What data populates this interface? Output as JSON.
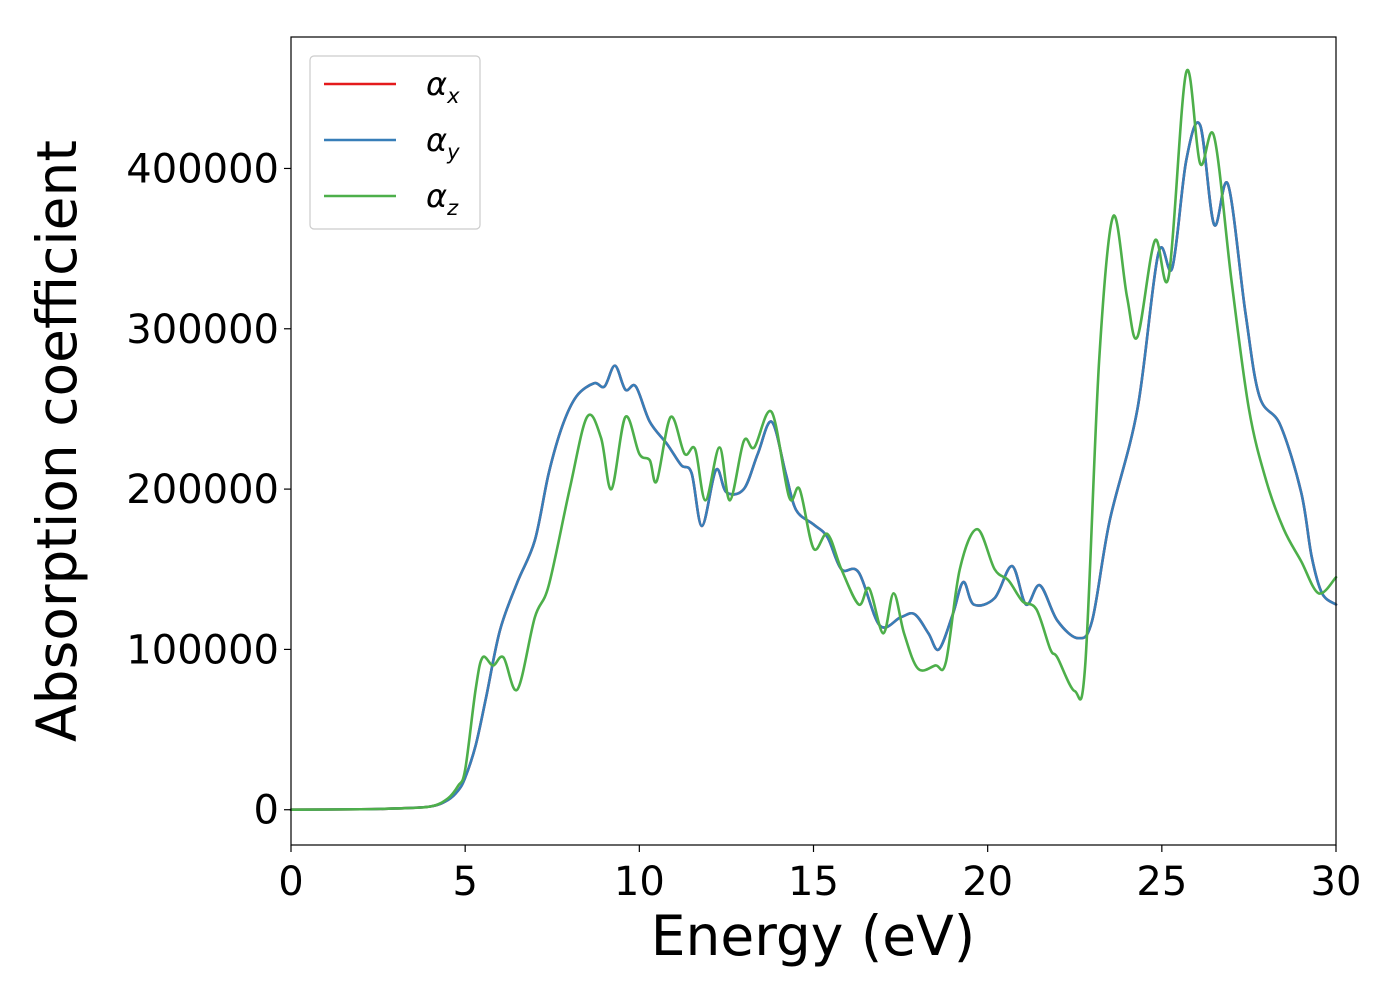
{
  "chart_data": {
    "type": "line",
    "title": "",
    "xlabel": "Energy (eV)",
    "ylabel": "Absorption coefficient",
    "xlim": [
      0,
      30
    ],
    "ylim": [
      -22000,
      482000
    ],
    "xticks": [
      0,
      5,
      10,
      15,
      20,
      25,
      30
    ],
    "yticks": [
      0,
      100000,
      200000,
      300000,
      400000
    ],
    "grid": false,
    "legend_position": "top-left",
    "legend": [
      {
        "base": "α",
        "sub": "x"
      },
      {
        "base": "α",
        "sub": "y"
      },
      {
        "base": "α",
        "sub": "z"
      }
    ],
    "series": [
      {
        "name": "αx",
        "color": "#e41a1c",
        "points": [
          [
            0,
            0
          ],
          [
            2,
            300
          ],
          [
            3,
            800
          ],
          [
            4,
            2000
          ],
          [
            4.5,
            6000
          ],
          [
            4.8,
            12000
          ],
          [
            5,
            20000
          ],
          [
            5.3,
            40000
          ],
          [
            5.6,
            70000
          ],
          [
            6,
            112000
          ],
          [
            6.5,
            142000
          ],
          [
            7,
            168000
          ],
          [
            7.4,
            210000
          ],
          [
            7.8,
            240000
          ],
          [
            8.2,
            258000
          ],
          [
            8.7,
            266000
          ],
          [
            9.0,
            264000
          ],
          [
            9.3,
            277000
          ],
          [
            9.6,
            262000
          ],
          [
            9.9,
            264000
          ],
          [
            10.3,
            242000
          ],
          [
            10.8,
            228000
          ],
          [
            11.2,
            215000
          ],
          [
            11.5,
            210000
          ],
          [
            11.8,
            177000
          ],
          [
            12.2,
            212000
          ],
          [
            12.5,
            198000
          ],
          [
            13.0,
            200000
          ],
          [
            13.4,
            222000
          ],
          [
            13.8,
            242000
          ],
          [
            14.2,
            210000
          ],
          [
            14.5,
            187000
          ],
          [
            15.0,
            178000
          ],
          [
            15.4,
            170000
          ],
          [
            15.8,
            150000
          ],
          [
            16.3,
            148000
          ],
          [
            16.9,
            115000
          ],
          [
            17.5,
            120000
          ],
          [
            17.9,
            122000
          ],
          [
            18.3,
            110000
          ],
          [
            18.6,
            100000
          ],
          [
            19.0,
            122000
          ],
          [
            19.3,
            142000
          ],
          [
            19.6,
            128000
          ],
          [
            20.2,
            132000
          ],
          [
            20.7,
            152000
          ],
          [
            21.1,
            128000
          ],
          [
            21.5,
            140000
          ],
          [
            22.0,
            118000
          ],
          [
            22.6,
            107000
          ],
          [
            23.0,
            118000
          ],
          [
            23.5,
            180000
          ],
          [
            24.3,
            250000
          ],
          [
            24.9,
            347000
          ],
          [
            25.3,
            338000
          ],
          [
            25.7,
            405000
          ],
          [
            26.1,
            427000
          ],
          [
            26.5,
            365000
          ],
          [
            26.9,
            390000
          ],
          [
            27.4,
            310000
          ],
          [
            27.8,
            258000
          ],
          [
            28.4,
            240000
          ],
          [
            29.0,
            198000
          ],
          [
            29.3,
            158000
          ],
          [
            29.6,
            135000
          ],
          [
            30,
            128000
          ]
        ]
      },
      {
        "name": "αy",
        "color": "#377eb8",
        "points": [
          [
            0,
            0
          ],
          [
            2,
            300
          ],
          [
            3,
            800
          ],
          [
            4,
            2000
          ],
          [
            4.5,
            6000
          ],
          [
            4.8,
            12000
          ],
          [
            5,
            20000
          ],
          [
            5.3,
            40000
          ],
          [
            5.6,
            70000
          ],
          [
            6,
            112000
          ],
          [
            6.5,
            142000
          ],
          [
            7,
            168000
          ],
          [
            7.4,
            210000
          ],
          [
            7.8,
            240000
          ],
          [
            8.2,
            258000
          ],
          [
            8.7,
            266000
          ],
          [
            9.0,
            264000
          ],
          [
            9.3,
            277000
          ],
          [
            9.6,
            262000
          ],
          [
            9.9,
            264000
          ],
          [
            10.3,
            242000
          ],
          [
            10.8,
            228000
          ],
          [
            11.2,
            215000
          ],
          [
            11.5,
            210000
          ],
          [
            11.8,
            177000
          ],
          [
            12.2,
            212000
          ],
          [
            12.5,
            198000
          ],
          [
            13.0,
            200000
          ],
          [
            13.4,
            222000
          ],
          [
            13.8,
            242000
          ],
          [
            14.2,
            210000
          ],
          [
            14.5,
            187000
          ],
          [
            15.0,
            178000
          ],
          [
            15.4,
            170000
          ],
          [
            15.8,
            150000
          ],
          [
            16.3,
            148000
          ],
          [
            16.9,
            115000
          ],
          [
            17.5,
            120000
          ],
          [
            17.9,
            122000
          ],
          [
            18.3,
            110000
          ],
          [
            18.6,
            100000
          ],
          [
            19.0,
            122000
          ],
          [
            19.3,
            142000
          ],
          [
            19.6,
            128000
          ],
          [
            20.2,
            132000
          ],
          [
            20.7,
            152000
          ],
          [
            21.1,
            128000
          ],
          [
            21.5,
            140000
          ],
          [
            22.0,
            118000
          ],
          [
            22.6,
            107000
          ],
          [
            23.0,
            118000
          ],
          [
            23.5,
            180000
          ],
          [
            24.3,
            250000
          ],
          [
            24.9,
            347000
          ],
          [
            25.3,
            338000
          ],
          [
            25.7,
            405000
          ],
          [
            26.1,
            427000
          ],
          [
            26.5,
            365000
          ],
          [
            26.9,
            390000
          ],
          [
            27.4,
            310000
          ],
          [
            27.8,
            258000
          ],
          [
            28.4,
            240000
          ],
          [
            29.0,
            198000
          ],
          [
            29.3,
            158000
          ],
          [
            29.6,
            135000
          ],
          [
            30,
            128000
          ]
        ]
      },
      {
        "name": "αz",
        "color": "#4daf4a",
        "points": [
          [
            0,
            0
          ],
          [
            2,
            300
          ],
          [
            3,
            800
          ],
          [
            4,
            2000
          ],
          [
            4.5,
            7000
          ],
          [
            4.8,
            15000
          ],
          [
            5,
            25000
          ],
          [
            5.3,
            75000
          ],
          [
            5.5,
            95000
          ],
          [
            5.8,
            90000
          ],
          [
            6.1,
            95000
          ],
          [
            6.5,
            75000
          ],
          [
            7.0,
            120000
          ],
          [
            7.4,
            140000
          ],
          [
            8.0,
            200000
          ],
          [
            8.5,
            245000
          ],
          [
            8.9,
            232000
          ],
          [
            9.2,
            200000
          ],
          [
            9.6,
            245000
          ],
          [
            10.0,
            222000
          ],
          [
            10.3,
            218000
          ],
          [
            10.5,
            205000
          ],
          [
            10.9,
            245000
          ],
          [
            11.3,
            222000
          ],
          [
            11.6,
            225000
          ],
          [
            11.9,
            193000
          ],
          [
            12.3,
            226000
          ],
          [
            12.6,
            193000
          ],
          [
            13.0,
            230000
          ],
          [
            13.3,
            226000
          ],
          [
            13.8,
            248000
          ],
          [
            14.3,
            195000
          ],
          [
            14.6,
            200000
          ],
          [
            15.0,
            163000
          ],
          [
            15.4,
            172000
          ],
          [
            15.8,
            150000
          ],
          [
            16.3,
            128000
          ],
          [
            16.6,
            138000
          ],
          [
            17.0,
            110000
          ],
          [
            17.3,
            135000
          ],
          [
            17.6,
            110000
          ],
          [
            18.0,
            88000
          ],
          [
            18.5,
            90000
          ],
          [
            18.8,
            92000
          ],
          [
            19.2,
            150000
          ],
          [
            19.7,
            175000
          ],
          [
            20.2,
            150000
          ],
          [
            20.6,
            143000
          ],
          [
            21.0,
            130000
          ],
          [
            21.4,
            125000
          ],
          [
            21.8,
            100000
          ],
          [
            22.0,
            95000
          ],
          [
            22.5,
            74000
          ],
          [
            22.8,
            90000
          ],
          [
            23.2,
            280000
          ],
          [
            23.6,
            370000
          ],
          [
            24.0,
            320000
          ],
          [
            24.3,
            295000
          ],
          [
            24.8,
            355000
          ],
          [
            25.2,
            333000
          ],
          [
            25.7,
            460000
          ],
          [
            26.1,
            403000
          ],
          [
            26.5,
            420000
          ],
          [
            27.0,
            330000
          ],
          [
            27.5,
            250000
          ],
          [
            28.0,
            205000
          ],
          [
            28.5,
            175000
          ],
          [
            29.0,
            155000
          ],
          [
            29.5,
            135000
          ],
          [
            30,
            145000
          ]
        ]
      }
    ]
  }
}
